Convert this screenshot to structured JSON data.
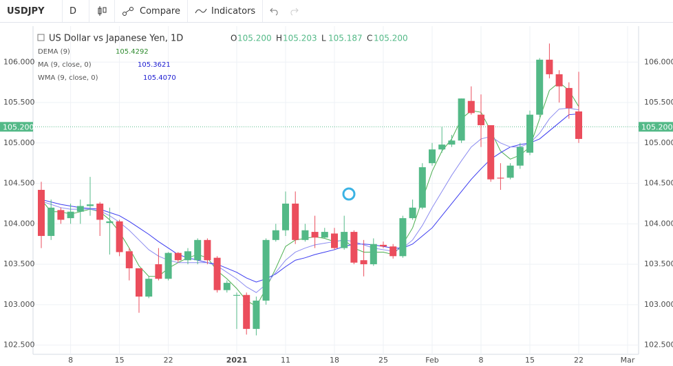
{
  "toolbar": {
    "symbol": "USDJPY",
    "interval": "D",
    "compare": "Compare",
    "indicators": "Indicators"
  },
  "chart_data": {
    "type": "candlestick",
    "title": "US Dollar vs Japanese Yen, 1D",
    "ohlc_legend": [
      {
        "key": "O",
        "value": "105.200"
      },
      {
        "key": "H",
        "value": "105.203"
      },
      {
        "key": "L",
        "value": "105.187"
      },
      {
        "key": "C",
        "value": "105.200"
      }
    ],
    "categories": [
      null,
      null,
      null,
      "8",
      null,
      null,
      null,
      null,
      "15",
      null,
      null,
      null,
      null,
      "22",
      null,
      null,
      null,
      null,
      null,
      null,
      "2021",
      null,
      null,
      null,
      null,
      "11",
      null,
      null,
      null,
      null,
      "18",
      null,
      null,
      null,
      null,
      "25",
      null,
      null,
      null,
      null,
      "Feb",
      null,
      null,
      null,
      null,
      "8",
      null,
      null,
      null,
      null,
      "15",
      null,
      null,
      null,
      null,
      "22",
      null,
      null,
      null,
      null,
      "Mar"
    ],
    "open": [
      104.42,
      103.85,
      104.17,
      104.07,
      104.15,
      104.22,
      104.25,
      104.01,
      104.03,
      103.66,
      103.45,
      103.1,
      103.5,
      103.32,
      103.64,
      103.55,
      103.55,
      103.8,
      103.58,
      103.18,
      103.11,
      103.12,
      102.7,
      103.05,
      103.8,
      103.92,
      104.25,
      103.8,
      103.9,
      103.83,
      103.88,
      103.7,
      103.9,
      103.55,
      103.5,
      103.74,
      103.72,
      103.6,
      104.07,
      104.2,
      104.75,
      104.92,
      104.98,
      105.03,
      105.52,
      105.35,
      105.22,
      104.57,
      104.57,
      104.72,
      104.88,
      105.35,
      106.03,
      105.85,
      105.68,
      105.39,
      null,
      null,
      null,
      null,
      null
    ],
    "high": [
      104.52,
      104.3,
      104.2,
      104.25,
      104.3,
      104.58,
      104.27,
      104.2,
      104.05,
      103.7,
      103.45,
      103.35,
      103.7,
      103.65,
      103.65,
      103.7,
      103.82,
      103.82,
      103.6,
      103.3,
      103.15,
      103.15,
      103.1,
      103.82,
      104.0,
      104.4,
      104.4,
      104.0,
      104.1,
      103.95,
      103.95,
      104.1,
      103.92,
      103.8,
      103.82,
      103.78,
      103.75,
      104.1,
      104.3,
      104.75,
      105.0,
      105.2,
      105.1,
      105.55,
      105.7,
      105.6,
      105.22,
      104.75,
      104.75,
      105.0,
      105.4,
      106.05,
      106.23,
      105.9,
      105.75,
      105.88,
      null,
      null,
      null,
      null,
      null
    ],
    "low": [
      103.7,
      103.8,
      104.0,
      104.0,
      104.0,
      104.1,
      103.85,
      103.62,
      103.6,
      103.3,
      102.9,
      103.08,
      103.3,
      103.3,
      103.52,
      103.5,
      103.5,
      103.5,
      103.15,
      103.15,
      102.7,
      102.63,
      102.62,
      103.0,
      103.78,
      103.85,
      103.75,
      103.78,
      103.7,
      103.82,
      103.68,
      103.68,
      103.5,
      103.35,
      103.48,
      103.7,
      103.57,
      103.58,
      104.05,
      104.18,
      104.72,
      104.88,
      104.95,
      105.0,
      105.35,
      104.95,
      104.52,
      104.42,
      104.55,
      104.68,
      104.85,
      105.32,
      105.8,
      105.5,
      105.3,
      105.0,
      null,
      null,
      null,
      null,
      null
    ],
    "close": [
      103.85,
      104.2,
      104.05,
      104.15,
      104.22,
      104.24,
      104.05,
      104.03,
      103.65,
      103.45,
      103.1,
      103.32,
      103.32,
      103.64,
      103.55,
      103.66,
      103.8,
      103.55,
      103.18,
      103.27,
      103.12,
      102.7,
      103.05,
      103.8,
      103.92,
      104.25,
      103.8,
      103.92,
      103.83,
      103.9,
      103.7,
      103.9,
      103.52,
      103.5,
      103.75,
      103.72,
      103.6,
      104.07,
      104.2,
      104.7,
      104.92,
      104.98,
      105.03,
      105.55,
      105.37,
      105.22,
      104.55,
      104.56,
      104.72,
      104.95,
      105.35,
      106.03,
      105.85,
      105.7,
      105.43,
      105.05,
      null,
      null,
      null,
      null,
      null
    ],
    "up_color": "#53b987",
    "down_color": "#eb4d5c",
    "series": [
      {
        "name": "DEMA (9)",
        "legend_value": "105.4292",
        "color": "#4caf50",
        "values": [
          104.3,
          104.15,
          104.15,
          104.12,
          104.15,
          104.18,
          104.15,
          104.05,
          103.9,
          103.7,
          103.48,
          103.35,
          103.35,
          103.45,
          103.52,
          103.58,
          103.62,
          103.58,
          103.42,
          103.32,
          103.2,
          103.05,
          102.98,
          103.2,
          103.45,
          103.72,
          103.8,
          103.82,
          103.84,
          103.82,
          103.78,
          103.8,
          103.7,
          103.65,
          103.65,
          103.65,
          103.62,
          103.75,
          103.95,
          104.3,
          104.65,
          104.9,
          105.05,
          105.3,
          105.4,
          105.38,
          105.15,
          104.9,
          104.8,
          104.85,
          104.95,
          105.3,
          105.65,
          105.75,
          105.65,
          105.45,
          null,
          null,
          null,
          null,
          null
        ]
      },
      {
        "name": "MA (9, close, 0)",
        "legend_value": "105.3621",
        "color": "#3a3af0",
        "values": [
          104.3,
          104.27,
          104.24,
          104.22,
          104.2,
          104.19,
          104.18,
          104.14,
          104.1,
          104.03,
          103.95,
          103.87,
          103.78,
          103.7,
          103.62,
          103.58,
          103.55,
          103.52,
          103.5,
          103.45,
          103.4,
          103.33,
          103.28,
          103.32,
          103.38,
          103.47,
          103.55,
          103.58,
          103.62,
          103.65,
          103.68,
          103.72,
          103.75,
          103.75,
          103.74,
          103.72,
          103.7,
          103.7,
          103.75,
          103.85,
          103.95,
          104.1,
          104.25,
          104.4,
          104.55,
          104.68,
          104.8,
          104.88,
          104.95,
          104.98,
          105.0,
          105.05,
          105.15,
          105.25,
          105.35,
          105.36,
          null,
          null,
          null,
          null,
          null
        ]
      },
      {
        "name": "WMA (9, close, 0)",
        "legend_value": "105.4070",
        "color": "#8b8bf0",
        "values": [
          104.28,
          104.24,
          104.2,
          104.18,
          104.18,
          104.18,
          104.16,
          104.1,
          104.02,
          103.92,
          103.8,
          103.68,
          103.6,
          103.55,
          103.52,
          103.52,
          103.52,
          103.52,
          103.48,
          103.4,
          103.32,
          103.22,
          103.15,
          103.25,
          103.4,
          103.55,
          103.65,
          103.7,
          103.74,
          103.76,
          103.78,
          103.8,
          103.78,
          103.74,
          103.7,
          103.68,
          103.66,
          103.7,
          103.8,
          103.98,
          104.2,
          104.4,
          104.6,
          104.78,
          104.95,
          105.05,
          105.08,
          105.0,
          104.95,
          104.95,
          105.0,
          105.12,
          105.3,
          105.42,
          105.43,
          105.41,
          null,
          null,
          null,
          null,
          null
        ]
      }
    ],
    "price_line": {
      "value": 105.2,
      "label": "105.200",
      "color": "#53b987"
    },
    "ylim": [
      102.386,
      106.445
    ],
    "yticks": [
      {
        "value": 102.5,
        "label": "102.500"
      },
      {
        "value": 103,
        "label": "103.000"
      },
      {
        "value": 103.5,
        "label": "103.500"
      },
      {
        "value": 104,
        "label": "104.000"
      },
      {
        "value": 104.5,
        "label": "104.500"
      },
      {
        "value": 105,
        "label": "105.000"
      },
      {
        "value": 105.5,
        "label": "105.500"
      },
      {
        "value": 106,
        "label": "106.000"
      }
    ],
    "grid": true
  }
}
